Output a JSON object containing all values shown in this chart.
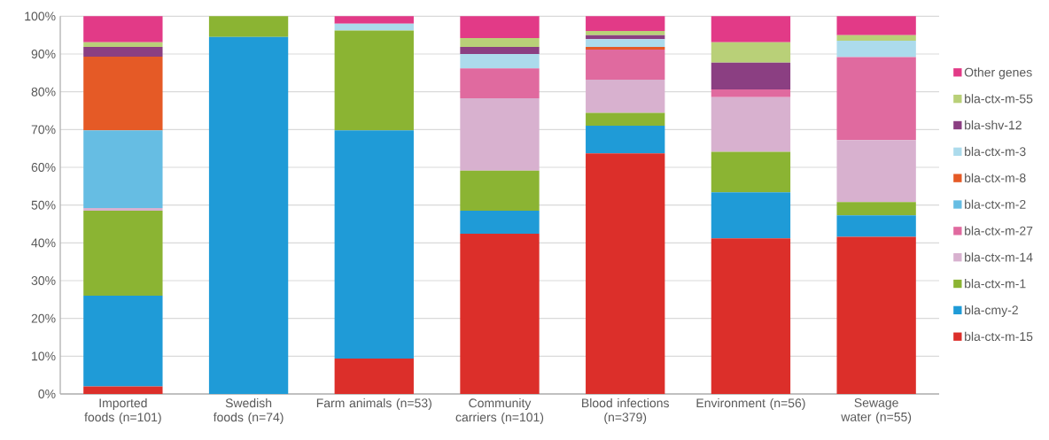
{
  "chart_data": {
    "type": "bar",
    "stacked": true,
    "categories": [
      "Imported foods (n=101)",
      "Swedish foods (n=74)",
      "Farm animals (n=53)",
      "Community carriers (n=101)",
      "Blood infections (n=379)",
      "Environment (n=56)",
      "Sewage water (n=55)"
    ],
    "series": [
      {
        "name": "bla-ctx-m-15",
        "color": "#dc2f2a",
        "values": [
          2.0,
          0,
          9.4,
          42.4,
          63.7,
          41.2,
          41.6
        ]
      },
      {
        "name": "bla-cmy-2",
        "color": "#1f9bd7",
        "values": [
          24.0,
          94.5,
          60.4,
          6.1,
          7.3,
          12.2,
          5.7
        ]
      },
      {
        "name": "bla-ctx-m-1",
        "color": "#8bb433",
        "values": [
          22.5,
          5.5,
          26.4,
          10.6,
          3.4,
          10.7,
          3.5
        ]
      },
      {
        "name": "bla-ctx-m-14",
        "color": "#d8b1cf",
        "values": [
          0.7,
          0,
          0,
          19.2,
          8.8,
          14.5,
          16.4
        ]
      },
      {
        "name": "bla-ctx-m-27",
        "color": "#e06a9f",
        "values": [
          0,
          0,
          0,
          7.9,
          8.0,
          2.0,
          22.0
        ]
      },
      {
        "name": "bla-ctx-m-2",
        "color": "#66bde3",
        "values": [
          20.6,
          0,
          0,
          0,
          0,
          0,
          0
        ]
      },
      {
        "name": "bla-ctx-m-8",
        "color": "#e55a26",
        "values": [
          19.5,
          0,
          0,
          0,
          0.7,
          0,
          0
        ]
      },
      {
        "name": "bla-ctx-m-3",
        "color": "#acdbec",
        "values": [
          0,
          0,
          1.8,
          3.8,
          2.0,
          0,
          4.3
        ]
      },
      {
        "name": "bla-shv-12",
        "color": "#8b3f82",
        "values": [
          2.6,
          0,
          0,
          1.9,
          1.1,
          7.1,
          0
        ]
      },
      {
        "name": "bla-ctx-m-55",
        "color": "#b9d078",
        "values": [
          1.2,
          0,
          0,
          2.3,
          1.1,
          5.4,
          1.5
        ]
      },
      {
        "name": "Other genes",
        "color": "#e23a87",
        "values": [
          6.9,
          0,
          2.0,
          5.8,
          3.9,
          6.9,
          5.0
        ]
      }
    ],
    "ylim": [
      0,
      100
    ],
    "yticks": [
      {
        "value": 0,
        "label": "0%"
      },
      {
        "value": 10,
        "label": "10%"
      },
      {
        "value": 20,
        "label": "20%"
      },
      {
        "value": 30,
        "label": "30%"
      },
      {
        "value": 40,
        "label": "40%"
      },
      {
        "value": 50,
        "label": "50%"
      },
      {
        "value": 60,
        "label": "60%"
      },
      {
        "value": 70,
        "label": "70%"
      },
      {
        "value": 80,
        "label": "80%"
      },
      {
        "value": 90,
        "label": "90%"
      },
      {
        "value": 100,
        "label": "100%"
      }
    ],
    "grid": "y",
    "legend": "right"
  }
}
